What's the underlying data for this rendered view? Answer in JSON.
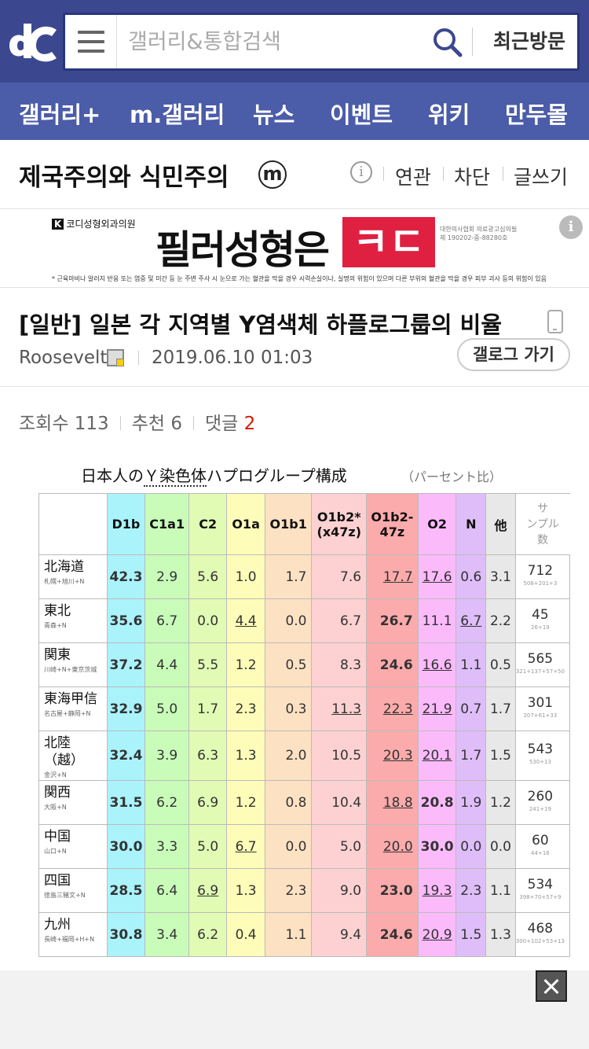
{
  "header": {
    "logo": "dc-logo",
    "search_placeholder": "갤러리&통합검색",
    "recent_label": "최근방문"
  },
  "nav": {
    "items": [
      "갤러리+",
      "m.갤러리",
      "뉴스",
      "이벤트",
      "위키",
      "만두몰"
    ]
  },
  "gallery": {
    "title": "제국주의와 식민주의",
    "badge": "ⓜ",
    "links": [
      "연관",
      "차단",
      "글쓰기"
    ]
  },
  "ad": {
    "brand_mark": "K",
    "brand_name": "코디",
    "brand_sub": "성형외과의원",
    "headline": "필러성형은",
    "highlight": "ㅋㄷ",
    "fine_print_1": "대한의사협회 의료광고심의필",
    "fine_print_2": "제 190202-중-88280호",
    "disclaimer": "* 근육마비나 알러지 반응 또는 염증 및 미간 등 눈 주변 주사 시 눈으로 가는 혈관을 막을 경우 시력손실이나, 실명의 위험이 있으며 다른 부위의 혈관을 막을 경우 피부 괴사 등의 위험이 있음"
  },
  "post": {
    "title": "[일반] 일본 각 지역별 Y염색체 하플로그룹의 비율",
    "author": "Roosevelt",
    "date": "2019.06.10 01:03",
    "gallog_label": "갤로그 가기",
    "views_label": "조회수 113",
    "recommend_label": "추천 6",
    "comments_label": "댓글",
    "comments_count": "2"
  },
  "figure": {
    "title_pre": "日本人の",
    "title_em": "Ｙ染色体",
    "title_post": "ハプログループ構成",
    "subtitle": "（パーセント比）",
    "headers": [
      "D1b",
      "C1a1",
      "C2",
      "O1a",
      "O1b1",
      "O1b2*\n(x47z)",
      "O1b2-\n47z",
      "O2",
      "N",
      "他",
      "サ\nンプル\n数"
    ],
    "rows": [
      {
        "region": "北海道",
        "sub": "札幌+旭川+N",
        "vals": [
          "42.3",
          "2.9",
          "5.6",
          "1.0",
          "1.7",
          "7.6",
          "17.7",
          "17.6",
          "0.6",
          "3.1"
        ],
        "count": "712",
        "count_sub": "508+201+3"
      },
      {
        "region": "東北",
        "sub": "青森+N",
        "vals": [
          "35.6",
          "6.7",
          "0.0",
          "4.4",
          "0.0",
          "6.7",
          "26.7",
          "11.1",
          "6.7",
          "2.2"
        ],
        "count": "45",
        "count_sub": "26+19"
      },
      {
        "region": "関東",
        "sub": "川崎+N+東京茨城",
        "vals": [
          "37.2",
          "4.4",
          "5.5",
          "1.2",
          "0.5",
          "8.3",
          "24.6",
          "16.6",
          "1.1",
          "0.5"
        ],
        "count": "565",
        "count_sub": "321+137+57+50"
      },
      {
        "region": "東海甲信",
        "sub": "名古屋+静岡+N",
        "vals": [
          "32.9",
          "5.0",
          "1.7",
          "2.3",
          "0.3",
          "11.3",
          "22.3",
          "21.9",
          "0.7",
          "1.7"
        ],
        "count": "301",
        "count_sub": "207+61+33"
      },
      {
        "region": "北陸\n（越）",
        "sub": "金沢+N",
        "vals": [
          "32.4",
          "3.9",
          "6.3",
          "1.3",
          "2.0",
          "10.5",
          "20.3",
          "20.1",
          "1.7",
          "1.5"
        ],
        "count": "543",
        "count_sub": "530+13"
      },
      {
        "region": "関西",
        "sub": "大阪+N",
        "vals": [
          "31.5",
          "6.2",
          "6.9",
          "1.2",
          "0.8",
          "10.4",
          "18.8",
          "20.8",
          "1.9",
          "1.2"
        ],
        "count": "260",
        "count_sub": "241+19"
      },
      {
        "region": "中国",
        "sub": "山口+N",
        "vals": [
          "30.0",
          "3.3",
          "5.0",
          "6.7",
          "0.0",
          "5.0",
          "20.0",
          "30.0",
          "0.0",
          "0.0"
        ],
        "count": "60",
        "count_sub": "44+16"
      },
      {
        "region": "四国",
        "sub": "徳島三豬文+N",
        "vals": [
          "28.5",
          "6.4",
          "6.9",
          "1.3",
          "2.3",
          "9.0",
          "23.0",
          "19.3",
          "2.3",
          "1.1"
        ],
        "count": "534",
        "count_sub": "398+70+57+9"
      },
      {
        "region": "九州",
        "sub": "長崎+福岡+H+N",
        "vals": [
          "30.8",
          "3.4",
          "6.2",
          "0.4",
          "1.1",
          "9.4",
          "24.6",
          "20.9",
          "1.5",
          "1.3"
        ],
        "count": "468",
        "count_sub": "300+102+53+13"
      }
    ],
    "bold_cells": [
      [
        0,
        0
      ],
      [
        1,
        0
      ],
      [
        1,
        6
      ],
      [
        2,
        0
      ],
      [
        2,
        6
      ],
      [
        3,
        0
      ],
      [
        4,
        0
      ],
      [
        5,
        0
      ],
      [
        5,
        7
      ],
      [
        6,
        0
      ],
      [
        6,
        7
      ],
      [
        7,
        0
      ],
      [
        7,
        6
      ],
      [
        8,
        0
      ],
      [
        8,
        6
      ]
    ],
    "underline_cells": [
      [
        0,
        6
      ],
      [
        0,
        7
      ],
      [
        1,
        3
      ],
      [
        1,
        8
      ],
      [
        2,
        7
      ],
      [
        3,
        5
      ],
      [
        3,
        6
      ],
      [
        3,
        7
      ],
      [
        4,
        6
      ],
      [
        4,
        7
      ],
      [
        5,
        6
      ],
      [
        6,
        3
      ],
      [
        6,
        6
      ],
      [
        7,
        2
      ],
      [
        7,
        7
      ],
      [
        8,
        7
      ]
    ]
  }
}
